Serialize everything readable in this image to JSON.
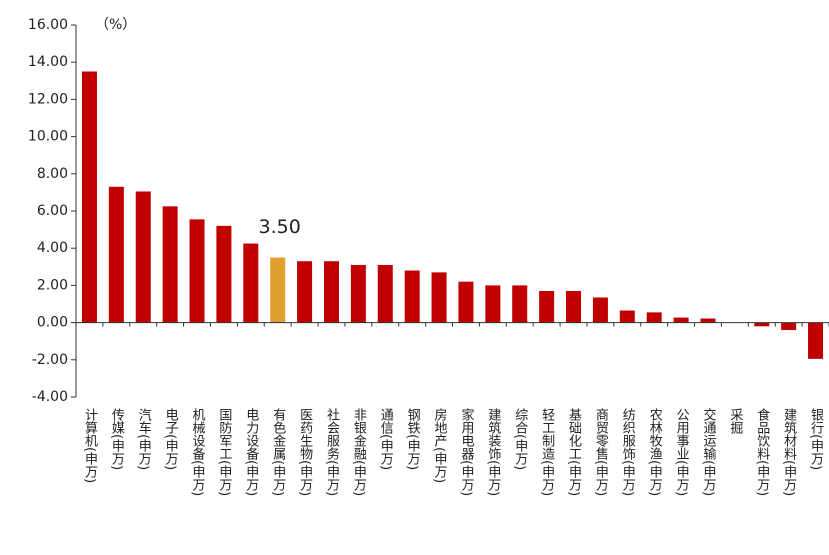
{
  "chart_data": {
    "type": "bar",
    "y_label": "（%）",
    "categories": [
      "计算机(申万)",
      "传媒(申万)",
      "汽车(申万)",
      "电子(申万)",
      "机械设备(申万)",
      "国防军工(申万)",
      "电力设备(申万)",
      "有色金属(申万)",
      "医药生物(申万)",
      "社会服务(申万)",
      "非银金融(申万)",
      "通信(申万)",
      "钢铁(申万)",
      "房地产(申万)",
      "家用电器(申万)",
      "建筑装饰(申万)",
      "综合(申万)",
      "轻工制造(申万)",
      "基础化工(申万)",
      "商贸零售(申万)",
      "纺织服饰(申万)",
      "农林牧渔(申万)",
      "公用事业(申万)",
      "交通运输(申万)",
      "采掘",
      "食品饮料(申万)",
      "建筑材料(申万)",
      "银行(申万)"
    ],
    "values": [
      13.5,
      7.3,
      7.05,
      6.25,
      5.55,
      5.2,
      4.25,
      3.5,
      3.3,
      3.3,
      3.1,
      3.1,
      2.8,
      2.7,
      2.2,
      2.0,
      2.0,
      1.7,
      1.7,
      1.35,
      0.65,
      0.55,
      0.27,
      0.22,
      0,
      -0.2,
      -0.4,
      -1.95
    ],
    "value_labels": [
      null,
      null,
      null,
      null,
      null,
      null,
      null,
      "3.50",
      null,
      null,
      null,
      null,
      null,
      null,
      null,
      null,
      null,
      null,
      null,
      null,
      null,
      null,
      null,
      null,
      null,
      null,
      null,
      null
    ],
    "colors": [
      "#c00000",
      "#c00000",
      "#c00000",
      "#c00000",
      "#c00000",
      "#c00000",
      "#c00000",
      "#e0a030",
      "#c00000",
      "#c00000",
      "#c00000",
      "#c00000",
      "#c00000",
      "#c00000",
      "#c00000",
      "#c00000",
      "#c00000",
      "#c00000",
      "#c00000",
      "#c00000",
      "#c00000",
      "#c00000",
      "#c00000",
      "#c00000",
      "#c00000",
      "#c00000",
      "#c00000",
      "#c00000"
    ],
    "ylim": [
      -4,
      16
    ],
    "yticks": [
      {
        "value": -4,
        "label": "-4.00"
      },
      {
        "value": -2,
        "label": "-2.00"
      },
      {
        "value": 0,
        "label": "0.00"
      },
      {
        "value": 2,
        "label": "2.00"
      },
      {
        "value": 4,
        "label": "4.00"
      },
      {
        "value": 6,
        "label": "6.00"
      },
      {
        "value": 8,
        "label": "8.00"
      },
      {
        "value": 10,
        "label": "10.00"
      },
      {
        "value": 12,
        "label": "12.00"
      },
      {
        "value": 14,
        "label": "14.00"
      },
      {
        "value": 16,
        "label": "16.00"
      }
    ],
    "grid": false
  }
}
